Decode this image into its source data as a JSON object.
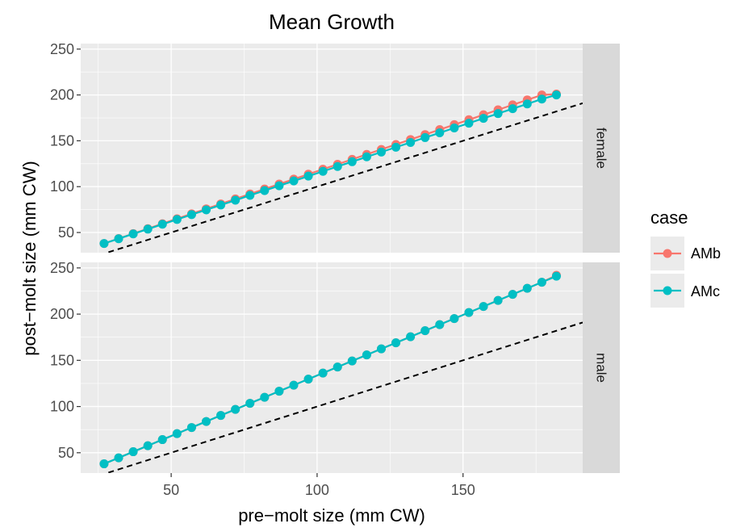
{
  "chart_data": {
    "type": "line",
    "title": "Mean Growth",
    "xlabel": "pre−molt size (mm CW)",
    "ylabel": "post−molt size (mm CW)",
    "xlim": [
      19,
      191
    ],
    "x_ticks": [
      50,
      100,
      150
    ],
    "ylim": [
      28,
      256
    ],
    "y_ticks": [
      50,
      100,
      150,
      200,
      250
    ],
    "grid": true,
    "legend": {
      "title": "case",
      "position": "right",
      "entries": [
        "AMb",
        "AMc"
      ]
    },
    "colors": {
      "AMb": "#F8766D",
      "AMc": "#00BFC4",
      "panel_bg": "#EBEBEB",
      "strip_bg": "#D9D9D9",
      "reference_line": "#000000"
    },
    "reference_line": {
      "style": "dashed",
      "description": "y = x",
      "points": [
        [
          19,
          19
        ],
        [
          191,
          191
        ]
      ]
    },
    "x": [
      27,
      32,
      37,
      42,
      47,
      52,
      57,
      62,
      67,
      72,
      77,
      82,
      87,
      92,
      97,
      102,
      107,
      112,
      117,
      122,
      127,
      132,
      137,
      142,
      147,
      152,
      157,
      162,
      167,
      172,
      177,
      182
    ],
    "panels": [
      {
        "strip": "female",
        "series": [
          {
            "name": "AMb",
            "values": [
              38.0,
              43.4,
              48.8,
              54.2,
              59.6,
              65.0,
              70.4,
              75.8,
              81.2,
              86.6,
              92.0,
              97.4,
              102.8,
              108.2,
              113.6,
              119.0,
              124.4,
              129.8,
              135.2,
              140.6,
              146.0,
              151.4,
              156.8,
              162.2,
              167.6,
              173.0,
              178.4,
              183.8,
              189.2,
              194.6,
              200.0,
              201.0
            ]
          },
          {
            "name": "AMc",
            "values": [
              38.0,
              43.2,
              48.5,
              53.7,
              59.0,
              64.2,
              69.5,
              74.7,
              80.0,
              85.2,
              90.5,
              95.7,
              101.0,
              106.2,
              111.5,
              116.7,
              122.0,
              127.2,
              132.5,
              137.7,
              143.0,
              148.2,
              153.5,
              158.7,
              164.0,
              169.2,
              174.5,
              179.7,
              185.0,
              190.2,
              195.5,
              200.0
            ]
          }
        ]
      },
      {
        "strip": "male",
        "series": [
          {
            "name": "AMb",
            "values": [
              38.0,
              44.5,
              51.1,
              57.6,
              64.2,
              70.7,
              77.3,
              83.8,
              90.4,
              96.9,
              103.5,
              110.0,
              116.6,
              123.1,
              129.7,
              136.2,
              142.8,
              149.3,
              155.9,
              162.4,
              169.0,
              175.5,
              182.1,
              188.6,
              195.2,
              201.7,
              208.3,
              214.8,
              221.4,
              227.9,
              234.5,
              242.0
            ]
          },
          {
            "name": "AMc",
            "values": [
              38.0,
              44.5,
              51.1,
              57.6,
              64.2,
              70.7,
              77.3,
              83.8,
              90.4,
              96.9,
              103.5,
              110.0,
              116.6,
              123.1,
              129.7,
              136.2,
              142.8,
              149.3,
              155.9,
              162.4,
              169.0,
              175.5,
              182.1,
              188.6,
              195.2,
              201.7,
              208.3,
              214.8,
              221.4,
              227.9,
              234.5,
              241.0
            ]
          }
        ]
      }
    ]
  }
}
